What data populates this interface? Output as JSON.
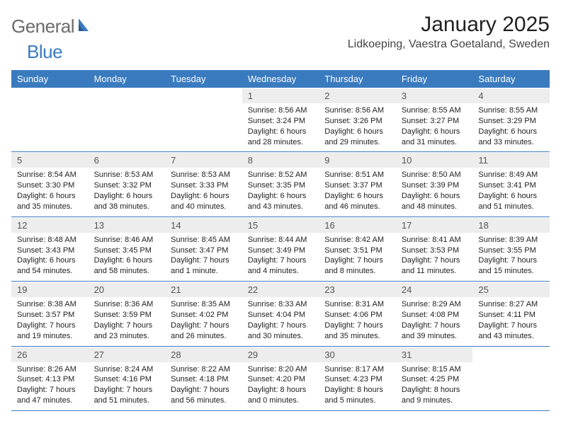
{
  "logo": {
    "general": "General",
    "blue": "Blue"
  },
  "title": "January 2025",
  "location": "Lidkoeping, Vaestra Goetaland, Sweden",
  "header": {
    "bg": "#3a7bbf",
    "fg": "#ffffff",
    "days": [
      "Sunday",
      "Monday",
      "Tuesday",
      "Wednesday",
      "Thursday",
      "Friday",
      "Saturday"
    ]
  },
  "cell_style": {
    "daynum_bg": "#ededed",
    "daynum_fg": "#555555",
    "detail_fontsize": 11,
    "border_color": "#3a7bbf"
  },
  "weeks": [
    [
      {
        "n": "",
        "sunrise": "",
        "sunset": "",
        "daylight": ""
      },
      {
        "n": "",
        "sunrise": "",
        "sunset": "",
        "daylight": ""
      },
      {
        "n": "",
        "sunrise": "",
        "sunset": "",
        "daylight": ""
      },
      {
        "n": "1",
        "sunrise": "Sunrise: 8:56 AM",
        "sunset": "Sunset: 3:24 PM",
        "daylight": "Daylight: 6 hours and 28 minutes."
      },
      {
        "n": "2",
        "sunrise": "Sunrise: 8:56 AM",
        "sunset": "Sunset: 3:26 PM",
        "daylight": "Daylight: 6 hours and 29 minutes."
      },
      {
        "n": "3",
        "sunrise": "Sunrise: 8:55 AM",
        "sunset": "Sunset: 3:27 PM",
        "daylight": "Daylight: 6 hours and 31 minutes."
      },
      {
        "n": "4",
        "sunrise": "Sunrise: 8:55 AM",
        "sunset": "Sunset: 3:29 PM",
        "daylight": "Daylight: 6 hours and 33 minutes."
      }
    ],
    [
      {
        "n": "5",
        "sunrise": "Sunrise: 8:54 AM",
        "sunset": "Sunset: 3:30 PM",
        "daylight": "Daylight: 6 hours and 35 minutes."
      },
      {
        "n": "6",
        "sunrise": "Sunrise: 8:53 AM",
        "sunset": "Sunset: 3:32 PM",
        "daylight": "Daylight: 6 hours and 38 minutes."
      },
      {
        "n": "7",
        "sunrise": "Sunrise: 8:53 AM",
        "sunset": "Sunset: 3:33 PM",
        "daylight": "Daylight: 6 hours and 40 minutes."
      },
      {
        "n": "8",
        "sunrise": "Sunrise: 8:52 AM",
        "sunset": "Sunset: 3:35 PM",
        "daylight": "Daylight: 6 hours and 43 minutes."
      },
      {
        "n": "9",
        "sunrise": "Sunrise: 8:51 AM",
        "sunset": "Sunset: 3:37 PM",
        "daylight": "Daylight: 6 hours and 46 minutes."
      },
      {
        "n": "10",
        "sunrise": "Sunrise: 8:50 AM",
        "sunset": "Sunset: 3:39 PM",
        "daylight": "Daylight: 6 hours and 48 minutes."
      },
      {
        "n": "11",
        "sunrise": "Sunrise: 8:49 AM",
        "sunset": "Sunset: 3:41 PM",
        "daylight": "Daylight: 6 hours and 51 minutes."
      }
    ],
    [
      {
        "n": "12",
        "sunrise": "Sunrise: 8:48 AM",
        "sunset": "Sunset: 3:43 PM",
        "daylight": "Daylight: 6 hours and 54 minutes."
      },
      {
        "n": "13",
        "sunrise": "Sunrise: 8:46 AM",
        "sunset": "Sunset: 3:45 PM",
        "daylight": "Daylight: 6 hours and 58 minutes."
      },
      {
        "n": "14",
        "sunrise": "Sunrise: 8:45 AM",
        "sunset": "Sunset: 3:47 PM",
        "daylight": "Daylight: 7 hours and 1 minute."
      },
      {
        "n": "15",
        "sunrise": "Sunrise: 8:44 AM",
        "sunset": "Sunset: 3:49 PM",
        "daylight": "Daylight: 7 hours and 4 minutes."
      },
      {
        "n": "16",
        "sunrise": "Sunrise: 8:42 AM",
        "sunset": "Sunset: 3:51 PM",
        "daylight": "Daylight: 7 hours and 8 minutes."
      },
      {
        "n": "17",
        "sunrise": "Sunrise: 8:41 AM",
        "sunset": "Sunset: 3:53 PM",
        "daylight": "Daylight: 7 hours and 11 minutes."
      },
      {
        "n": "18",
        "sunrise": "Sunrise: 8:39 AM",
        "sunset": "Sunset: 3:55 PM",
        "daylight": "Daylight: 7 hours and 15 minutes."
      }
    ],
    [
      {
        "n": "19",
        "sunrise": "Sunrise: 8:38 AM",
        "sunset": "Sunset: 3:57 PM",
        "daylight": "Daylight: 7 hours and 19 minutes."
      },
      {
        "n": "20",
        "sunrise": "Sunrise: 8:36 AM",
        "sunset": "Sunset: 3:59 PM",
        "daylight": "Daylight: 7 hours and 23 minutes."
      },
      {
        "n": "21",
        "sunrise": "Sunrise: 8:35 AM",
        "sunset": "Sunset: 4:02 PM",
        "daylight": "Daylight: 7 hours and 26 minutes."
      },
      {
        "n": "22",
        "sunrise": "Sunrise: 8:33 AM",
        "sunset": "Sunset: 4:04 PM",
        "daylight": "Daylight: 7 hours and 30 minutes."
      },
      {
        "n": "23",
        "sunrise": "Sunrise: 8:31 AM",
        "sunset": "Sunset: 4:06 PM",
        "daylight": "Daylight: 7 hours and 35 minutes."
      },
      {
        "n": "24",
        "sunrise": "Sunrise: 8:29 AM",
        "sunset": "Sunset: 4:08 PM",
        "daylight": "Daylight: 7 hours and 39 minutes."
      },
      {
        "n": "25",
        "sunrise": "Sunrise: 8:27 AM",
        "sunset": "Sunset: 4:11 PM",
        "daylight": "Daylight: 7 hours and 43 minutes."
      }
    ],
    [
      {
        "n": "26",
        "sunrise": "Sunrise: 8:26 AM",
        "sunset": "Sunset: 4:13 PM",
        "daylight": "Daylight: 7 hours and 47 minutes."
      },
      {
        "n": "27",
        "sunrise": "Sunrise: 8:24 AM",
        "sunset": "Sunset: 4:16 PM",
        "daylight": "Daylight: 7 hours and 51 minutes."
      },
      {
        "n": "28",
        "sunrise": "Sunrise: 8:22 AM",
        "sunset": "Sunset: 4:18 PM",
        "daylight": "Daylight: 7 hours and 56 minutes."
      },
      {
        "n": "29",
        "sunrise": "Sunrise: 8:20 AM",
        "sunset": "Sunset: 4:20 PM",
        "daylight": "Daylight: 8 hours and 0 minutes."
      },
      {
        "n": "30",
        "sunrise": "Sunrise: 8:17 AM",
        "sunset": "Sunset: 4:23 PM",
        "daylight": "Daylight: 8 hours and 5 minutes."
      },
      {
        "n": "31",
        "sunrise": "Sunrise: 8:15 AM",
        "sunset": "Sunset: 4:25 PM",
        "daylight": "Daylight: 8 hours and 9 minutes."
      },
      {
        "n": "",
        "sunrise": "",
        "sunset": "",
        "daylight": ""
      }
    ]
  ]
}
